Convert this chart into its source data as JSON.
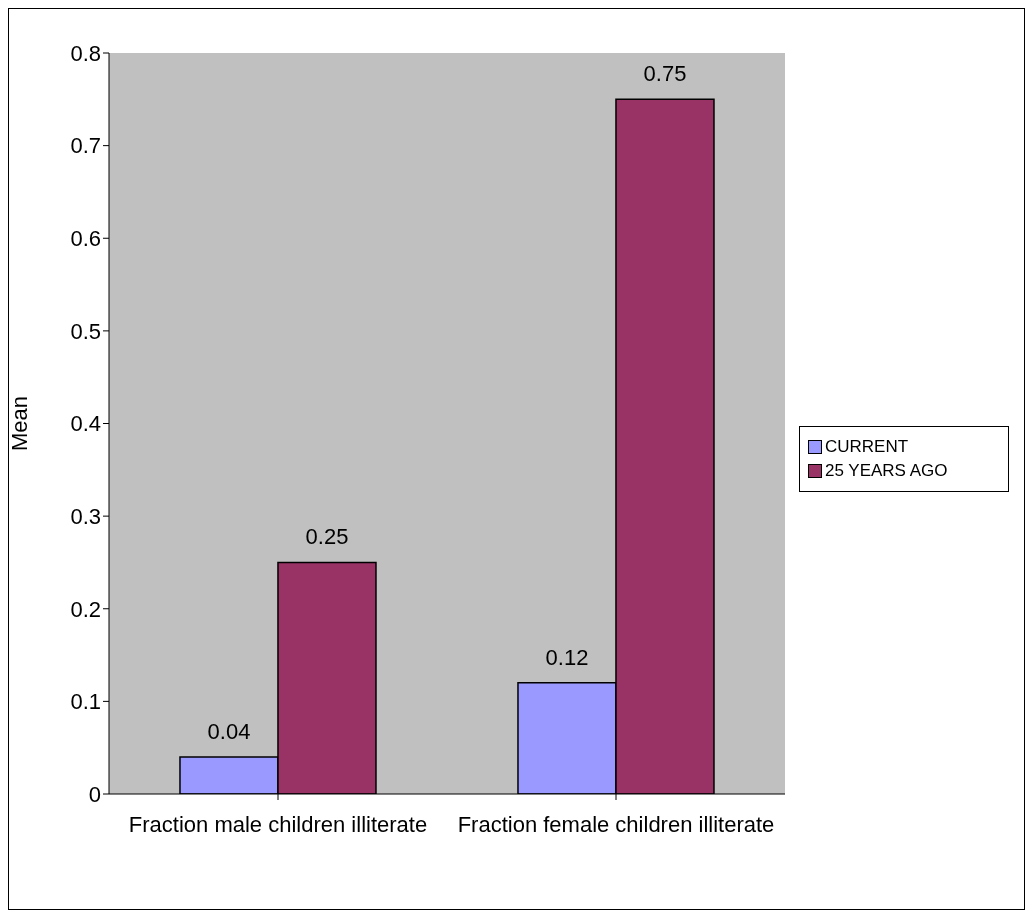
{
  "chart_data": {
    "type": "bar",
    "ylabel": "Mean",
    "categories": [
      "Fraction male children illiterate",
      "Fraction female children illiterate"
    ],
    "series": [
      {
        "name": "CURRENT",
        "color": "#9999ff",
        "values": [
          0.04,
          0.12
        ]
      },
      {
        "name": "25 YEARS AGO",
        "color": "#993366",
        "values": [
          0.25,
          0.75
        ]
      }
    ],
    "ylim": [
      0,
      0.8
    ],
    "yticks": [
      0,
      0.1,
      0.2,
      0.3,
      0.4,
      0.5,
      0.6,
      0.7,
      0.8
    ],
    "data_labels": true,
    "legend": "right"
  }
}
